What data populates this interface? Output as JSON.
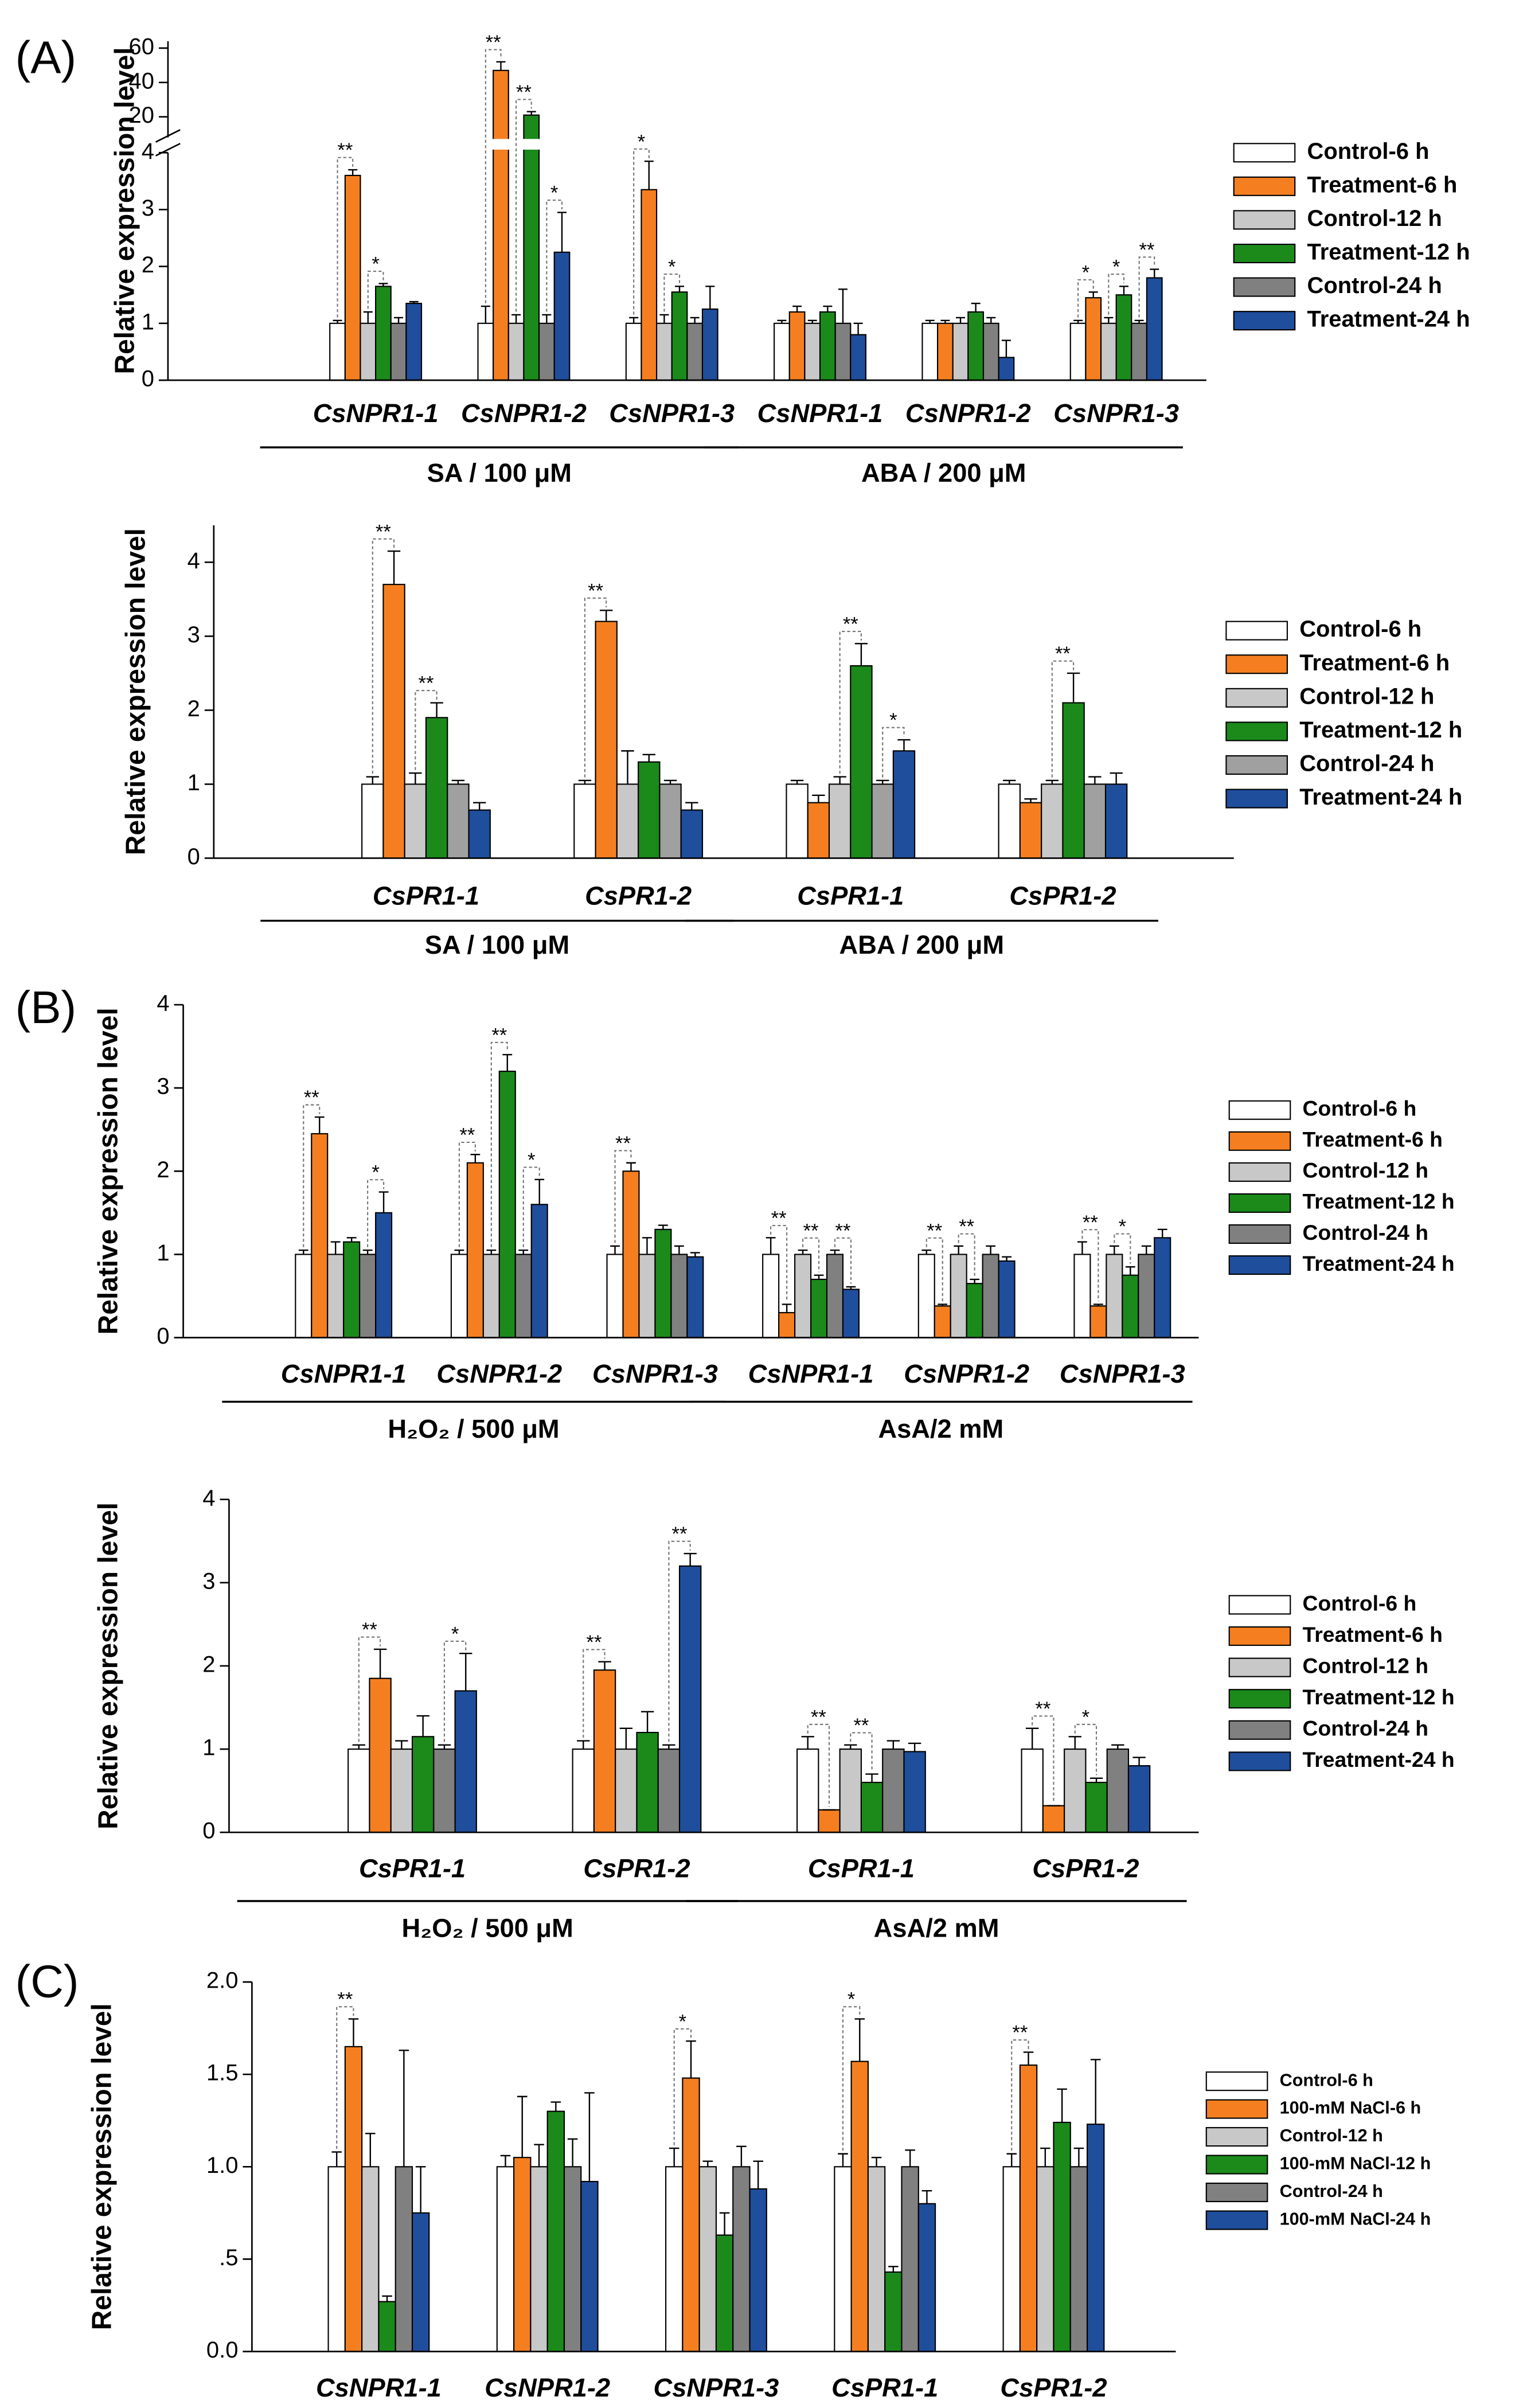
{
  "chart_data": [
    {
      "type": "bar",
      "panel": "(A)",
      "ylabel": "Relative expression level",
      "ylim": [
        0,
        4
      ],
      "yticks": [
        0,
        1,
        2,
        3,
        4
      ],
      "axis_break": true,
      "upper_ylim": [
        8,
        64
      ],
      "upper_yticks": [
        20,
        40,
        60
      ],
      "groups": [
        {
          "label": "SA / 100 μM",
          "categories": [
            "CsNPR1-1",
            "CsNPR1-2",
            "CsNPR1-3"
          ]
        },
        {
          "label": "ABA / 200 μM",
          "categories": [
            "CsNPR1-1",
            "CsNPR1-2",
            "CsNPR1-3"
          ]
        }
      ],
      "series": [
        {
          "name": "Control-6 h",
          "color": "#ffffff",
          "values": [
            1.0,
            1.0,
            1.0,
            1.0,
            1.0,
            1.0
          ],
          "errors": [
            0.05,
            0.3,
            0.1,
            0.05,
            0.05,
            0.05
          ],
          "significance": [
            null,
            null,
            null,
            null,
            null,
            null
          ]
        },
        {
          "name": "Treatment-6 h",
          "color": "#f57f20",
          "values": [
            3.6,
            47,
            3.35,
            1.2,
            1.0,
            1.45
          ],
          "errors": [
            0.1,
            5,
            0.5,
            0.1,
            0.05,
            0.1
          ],
          "significance": [
            "**",
            "**",
            "*",
            null,
            null,
            "*"
          ]
        },
        {
          "name": "Control-12 h",
          "color": "#c8c8c8",
          "values": [
            1.0,
            1.0,
            1.0,
            1.0,
            1.0,
            1.0
          ],
          "errors": [
            0.2,
            0.15,
            0.15,
            0.05,
            0.1,
            0.1
          ],
          "significance": [
            null,
            null,
            null,
            null,
            null,
            null
          ]
        },
        {
          "name": "Treatment-12 h",
          "color": "#1b8a1b",
          "values": [
            1.65,
            21,
            1.55,
            1.2,
            1.2,
            1.5
          ],
          "errors": [
            0.05,
            2,
            0.1,
            0.1,
            0.15,
            0.15
          ],
          "significance": [
            "*",
            "**",
            "*",
            null,
            null,
            "*"
          ]
        },
        {
          "name": "Control-24 h",
          "color": "#808080",
          "values": [
            1.0,
            1.0,
            1.0,
            1.0,
            1.0,
            1.0
          ],
          "errors": [
            0.1,
            0.15,
            0.1,
            0.6,
            0.1,
            0.05
          ],
          "significance": [
            null,
            null,
            null,
            null,
            null,
            null
          ]
        },
        {
          "name": "Treatment-24 h",
          "color": "#1f4e9c",
          "values": [
            1.35,
            2.25,
            1.25,
            0.8,
            0.4,
            1.8
          ],
          "errors": [
            0.03,
            0.7,
            0.4,
            0.2,
            0.3,
            0.15
          ],
          "significance": [
            null,
            "*",
            null,
            null,
            null,
            "**"
          ]
        }
      ]
    },
    {
      "type": "bar",
      "ylabel": "Relative expression level",
      "ylim": [
        0,
        4.5
      ],
      "yticks": [
        0,
        1,
        2,
        3,
        4
      ],
      "groups": [
        {
          "label": "SA / 100 μM",
          "categories": [
            "CsPR1-1",
            "CsPR1-2"
          ]
        },
        {
          "label": "ABA / 200 μM",
          "categories": [
            "CsPR1-1",
            "CsPR1-2"
          ]
        }
      ],
      "series": [
        {
          "name": "Control-6 h",
          "color": "#ffffff",
          "values": [
            1.0,
            1.0,
            1.0,
            1.0
          ],
          "errors": [
            0.1,
            0.05,
            0.05,
            0.05
          ],
          "significance": [
            null,
            null,
            null,
            null
          ]
        },
        {
          "name": "Treatment-6 h",
          "color": "#f57f20",
          "values": [
            3.7,
            3.2,
            0.75,
            0.75
          ],
          "errors": [
            0.45,
            0.15,
            0.1,
            0.05
          ],
          "significance": [
            "**",
            "**",
            null,
            null
          ]
        },
        {
          "name": "Control-12 h",
          "color": "#c8c8c8",
          "values": [
            1.0,
            1.0,
            1.0,
            1.0
          ],
          "errors": [
            0.15,
            0.45,
            0.1,
            0.05
          ],
          "significance": [
            null,
            null,
            null,
            null
          ]
        },
        {
          "name": "Treatment-12 h",
          "color": "#1b8a1b",
          "values": [
            1.9,
            1.3,
            2.6,
            2.1
          ],
          "errors": [
            0.2,
            0.1,
            0.3,
            0.4
          ],
          "significance": [
            "**",
            null,
            "**",
            "**"
          ]
        },
        {
          "name": "Control-24 h",
          "color": "#a0a0a0",
          "values": [
            1.0,
            1.0,
            1.0,
            1.0
          ],
          "errors": [
            0.05,
            0.05,
            0.05,
            0.1
          ],
          "significance": [
            null,
            null,
            null,
            null
          ]
        },
        {
          "name": "Treatment-24 h",
          "color": "#1f4e9c",
          "values": [
            0.65,
            0.65,
            1.45,
            1.0
          ],
          "errors": [
            0.1,
            0.1,
            0.15,
            0.15
          ],
          "significance": [
            null,
            null,
            "*",
            null
          ]
        }
      ]
    },
    {
      "type": "bar",
      "panel": "(B)",
      "ylabel": "Relative expression level",
      "ylim": [
        0,
        4
      ],
      "yticks": [
        0,
        1,
        2,
        3,
        4
      ],
      "groups": [
        {
          "label": "H₂O₂ / 500 μM",
          "categories": [
            "CsNPR1-1",
            "CsNPR1-2",
            "CsNPR1-3"
          ]
        },
        {
          "label": "AsA/2 mM",
          "categories": [
            "CsNPR1-1",
            "CsNPR1-2",
            "CsNPR1-3"
          ]
        }
      ],
      "series": [
        {
          "name": "Control-6 h",
          "color": "#ffffff",
          "values": [
            1.0,
            1.0,
            1.0,
            1.0,
            1.0,
            1.0
          ],
          "errors": [
            0.05,
            0.05,
            0.1,
            0.2,
            0.05,
            0.15
          ],
          "significance": [
            null,
            null,
            null,
            null,
            null,
            null
          ]
        },
        {
          "name": "Treatment-6 h",
          "color": "#f57f20",
          "values": [
            2.45,
            2.1,
            2.0,
            0.3,
            0.38,
            0.38
          ],
          "errors": [
            0.2,
            0.1,
            0.1,
            0.1,
            0.02,
            0.02
          ],
          "significance": [
            "**",
            "**",
            "**",
            "**",
            "**",
            "**"
          ]
        },
        {
          "name": "Control-12 h",
          "color": "#c8c8c8",
          "values": [
            1.0,
            1.0,
            1.0,
            1.0,
            1.0,
            1.0
          ],
          "errors": [
            0.15,
            0.05,
            0.2,
            0.05,
            0.1,
            0.1
          ],
          "significance": [
            null,
            null,
            null,
            null,
            null,
            null
          ]
        },
        {
          "name": "Treatment-12 h",
          "color": "#1b8a1b",
          "values": [
            1.15,
            3.2,
            1.3,
            0.7,
            0.65,
            0.75
          ],
          "errors": [
            0.05,
            0.2,
            0.05,
            0.05,
            0.05,
            0.1
          ],
          "significance": [
            null,
            "**",
            null,
            "**",
            "**",
            "*"
          ]
        },
        {
          "name": "Control-24 h",
          "color": "#808080",
          "values": [
            1.0,
            1.0,
            1.0,
            1.0,
            1.0,
            1.0
          ],
          "errors": [
            0.05,
            0.05,
            0.1,
            0.05,
            0.1,
            0.1
          ],
          "significance": [
            null,
            null,
            null,
            null,
            null,
            null
          ]
        },
        {
          "name": "Treatment-24 h",
          "color": "#1f4e9c",
          "values": [
            1.5,
            1.6,
            0.97,
            0.58,
            0.92,
            1.2
          ],
          "errors": [
            0.25,
            0.3,
            0.05,
            0.03,
            0.05,
            0.1
          ],
          "significance": [
            "*",
            "*",
            null,
            "**",
            null,
            null
          ]
        }
      ]
    },
    {
      "type": "bar",
      "ylabel": "Relative expression level",
      "ylim": [
        0,
        4
      ],
      "yticks": [
        0,
        1,
        2,
        3,
        4
      ],
      "groups": [
        {
          "label": "H₂O₂ / 500 μM",
          "categories": [
            "CsPR1-1",
            "CsPR1-2"
          ]
        },
        {
          "label": "AsA/2 mM",
          "categories": [
            "CsPR1-1",
            "CsPR1-2"
          ]
        }
      ],
      "series": [
        {
          "name": "Control-6 h",
          "color": "#ffffff",
          "values": [
            1.0,
            1.0,
            1.0,
            1.0
          ],
          "errors": [
            0.05,
            0.1,
            0.15,
            0.25
          ],
          "significance": [
            null,
            null,
            null,
            null
          ]
        },
        {
          "name": "Treatment-6 h",
          "color": "#f57f20",
          "values": [
            1.85,
            1.95,
            0.27,
            0.32
          ],
          "errors": [
            0.35,
            0.1,
            0,
            0
          ],
          "significance": [
            "**",
            "**",
            "**",
            "**"
          ]
        },
        {
          "name": "Control-12 h",
          "color": "#c8c8c8",
          "values": [
            1.0,
            1.0,
            1.0,
            1.0
          ],
          "errors": [
            0.1,
            0.25,
            0.05,
            0.15
          ],
          "significance": [
            null,
            null,
            null,
            null
          ]
        },
        {
          "name": "Treatment-12 h",
          "color": "#1b8a1b",
          "values": [
            1.15,
            1.2,
            0.6,
            0.6
          ],
          "errors": [
            0.25,
            0.25,
            0.1,
            0.05
          ],
          "significance": [
            null,
            null,
            "**",
            "*"
          ]
        },
        {
          "name": "Control-24 h",
          "color": "#808080",
          "values": [
            1.0,
            1.0,
            1.0,
            1.0
          ],
          "errors": [
            0.05,
            0.05,
            0.1,
            0.05
          ],
          "significance": [
            null,
            null,
            null,
            null
          ]
        },
        {
          "name": "Treatment-24 h",
          "color": "#1f4e9c",
          "values": [
            1.7,
            3.2,
            0.97,
            0.8
          ],
          "errors": [
            0.45,
            0.15,
            0.1,
            0.1
          ],
          "significance": [
            "*",
            "**",
            null,
            null
          ]
        }
      ]
    },
    {
      "type": "bar",
      "panel": "(C)",
      "ylabel": "Relative expression level",
      "ylim": [
        0,
        2
      ],
      "yticks": [
        {
          "value": 0,
          "label": "0.0"
        },
        {
          "value": 0.5,
          "label": ".5"
        },
        {
          "value": 1,
          "label": "1.0"
        },
        {
          "value": 1.5,
          "label": "1.5"
        },
        {
          "value": 2,
          "label": "2.0"
        }
      ],
      "categories": [
        "CsNPR1-1",
        "CsNPR1-2",
        "CsNPR1-3",
        "CsPR1-1",
        "CsPR1-2"
      ],
      "series": [
        {
          "name": "Control-6 h",
          "color": "#ffffff",
          "values": [
            1.0,
            1.0,
            1.0,
            1.0,
            1.0
          ],
          "errors": [
            0.08,
            0.06,
            0.1,
            0.07,
            0.07
          ],
          "significance": [
            null,
            null,
            null,
            null,
            null
          ]
        },
        {
          "name": "100-mM NaCl-6 h",
          "color": "#f57f20",
          "values": [
            1.65,
            1.05,
            1.48,
            1.57,
            1.55
          ],
          "errors": [
            0.15,
            0.33,
            0.2,
            0.23,
            0.07
          ],
          "significance": [
            "**",
            null,
            "*",
            "*",
            "**"
          ]
        },
        {
          "name": "Control-12 h",
          "color": "#c8c8c8",
          "values": [
            1.0,
            1.0,
            1.0,
            1.0,
            1.0
          ],
          "errors": [
            0.18,
            0.12,
            0.03,
            0.05,
            0.1
          ],
          "significance": [
            null,
            null,
            null,
            null,
            null
          ]
        },
        {
          "name": "100-mM NaCl-12 h",
          "color": "#1b8a1b",
          "values": [
            0.27,
            1.3,
            0.63,
            0.43,
            1.24
          ],
          "errors": [
            0.03,
            0.05,
            0.12,
            0.03,
            0.18
          ],
          "significance": [
            null,
            null,
            null,
            null,
            null
          ]
        },
        {
          "name": "Control-24 h",
          "color": "#808080",
          "values": [
            1.0,
            1.0,
            1.0,
            1.0,
            1.0
          ],
          "errors": [
            0.63,
            0.15,
            0.11,
            0.09,
            0.1
          ],
          "significance": [
            null,
            null,
            null,
            null,
            null
          ]
        },
        {
          "name": "100-mM NaCl-24 h",
          "color": "#1f4e9c",
          "values": [
            0.75,
            0.92,
            0.88,
            0.8,
            1.23
          ],
          "errors": [
            0.25,
            0.48,
            0.15,
            0.07,
            0.35
          ],
          "significance": [
            null,
            null,
            null,
            null,
            null
          ]
        }
      ]
    }
  ]
}
